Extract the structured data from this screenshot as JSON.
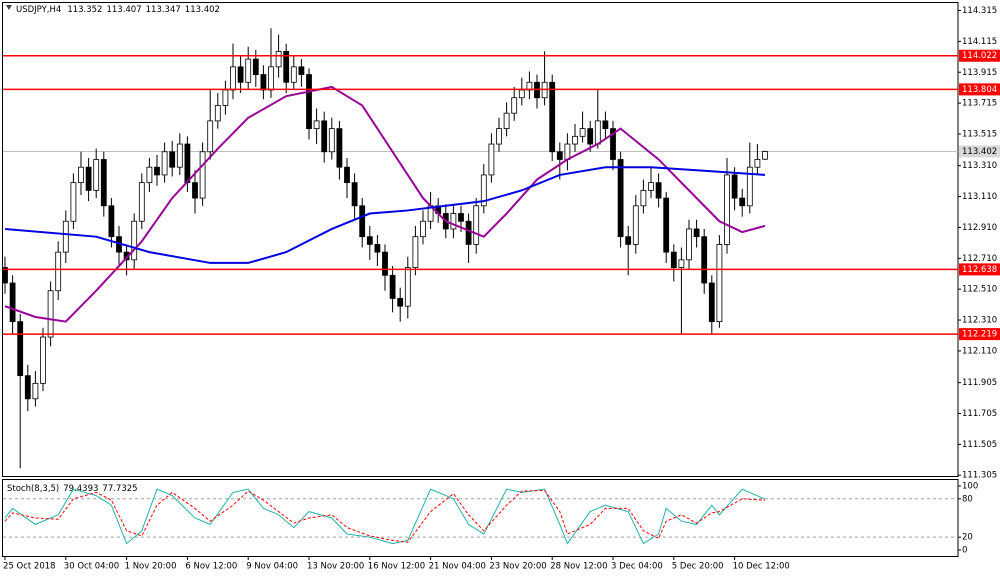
{
  "chart_data": [
    {
      "type": "candlestick",
      "symbol": "USDJPY,H4",
      "categories": [
        "25 Oct 2018",
        null,
        null,
        null,
        null,
        null,
        null,
        null,
        "30 Oct 04:00",
        null,
        null,
        null,
        null,
        null,
        null,
        null,
        "1 Nov 20:00",
        null,
        null,
        null,
        null,
        null,
        null,
        null,
        "6 Nov 12:00",
        null,
        null,
        null,
        null,
        null,
        null,
        null,
        "9 Nov 04:00",
        null,
        null,
        null,
        null,
        null,
        null,
        null,
        "13 Nov 20:00",
        null,
        null,
        null,
        null,
        null,
        null,
        null,
        "16 Nov 12:00",
        null,
        null,
        null,
        null,
        null,
        null,
        null,
        "21 Nov 04:00",
        null,
        null,
        null,
        null,
        null,
        null,
        null,
        "23 Nov 20:00",
        null,
        null,
        null,
        null,
        null,
        null,
        null,
        "28 Nov 12:00",
        null,
        null,
        null,
        null,
        null,
        null,
        null,
        "3 Dec 04:00",
        null,
        null,
        null,
        null,
        null,
        null,
        null,
        "5 Dec 20:00",
        null,
        null,
        null,
        null,
        null,
        null,
        null,
        "10 Dec 12:00",
        null,
        null,
        null,
        null
      ],
      "open": [
        112.65,
        112.55,
        112.3,
        111.95,
        111.8,
        111.9,
        112.2,
        112.5,
        112.75,
        112.95,
        113.2,
        113.3,
        113.15,
        113.35,
        113.05,
        112.85,
        112.75,
        112.7,
        112.95,
        113.2,
        113.3,
        113.25,
        113.4,
        113.3,
        113.45,
        113.2,
        113.1,
        113.4,
        113.6,
        113.7,
        113.8,
        113.95,
        113.85,
        114.0,
        113.9,
        113.8,
        113.95,
        114.05,
        113.85,
        113.95,
        113.9,
        113.55,
        113.6,
        113.4,
        113.55,
        113.3,
        113.2,
        113.05,
        112.85,
        112.8,
        112.75,
        112.6,
        112.45,
        112.4,
        112.65,
        112.85,
        112.95,
        113.05,
        113.0,
        112.9,
        113.0,
        112.95,
        112.8,
        113.05,
        113.25,
        113.45,
        113.55,
        113.65,
        113.75,
        113.8,
        113.85,
        113.75,
        113.85,
        113.4,
        113.35,
        113.45,
        113.5,
        113.55,
        113.45,
        113.6,
        113.55,
        113.35,
        112.85,
        112.8,
        113.05,
        113.15,
        113.2,
        113.1,
        112.75,
        112.65,
        112.7,
        112.9,
        112.85,
        112.55,
        112.3,
        112.8,
        113.25,
        113.1,
        113.05,
        113.3,
        113.352
      ],
      "high": [
        112.72,
        112.6,
        112.35,
        112.02,
        111.98,
        112.26,
        112.56,
        112.82,
        113.02,
        113.26,
        113.4,
        113.36,
        113.42,
        113.4,
        113.1,
        112.92,
        112.8,
        113.0,
        113.26,
        113.36,
        113.38,
        113.46,
        113.47,
        113.52,
        113.5,
        113.28,
        113.46,
        113.8,
        113.78,
        113.86,
        114.1,
        114.02,
        114.08,
        114.06,
        113.96,
        114.2,
        114.16,
        114.1,
        114.02,
        114.0,
        113.94,
        113.68,
        113.66,
        113.62,
        113.6,
        113.36,
        113.26,
        113.1,
        112.92,
        112.86,
        112.8,
        112.66,
        112.52,
        112.72,
        112.92,
        113.02,
        113.14,
        113.1,
        113.06,
        113.06,
        113.05,
        113.0,
        113.1,
        113.32,
        113.52,
        113.62,
        113.72,
        113.82,
        113.88,
        113.92,
        113.9,
        114.05,
        113.9,
        113.46,
        113.52,
        113.58,
        113.66,
        113.6,
        113.8,
        113.66,
        113.6,
        113.4,
        112.92,
        113.12,
        113.22,
        113.3,
        113.26,
        113.14,
        112.8,
        112.78,
        112.96,
        112.96,
        112.9,
        112.6,
        112.86,
        113.36,
        113.3,
        113.16,
        113.46,
        113.45,
        113.407
      ],
      "low": [
        112.48,
        112.22,
        111.35,
        111.72,
        111.75,
        111.85,
        112.14,
        112.44,
        112.68,
        112.9,
        113.12,
        113.08,
        113.1,
        112.98,
        112.78,
        112.66,
        112.6,
        112.64,
        112.9,
        113.14,
        113.18,
        113.2,
        113.24,
        113.25,
        113.14,
        113.0,
        113.05,
        113.35,
        113.55,
        113.64,
        113.74,
        113.78,
        113.8,
        113.82,
        113.74,
        113.75,
        113.88,
        113.78,
        113.8,
        113.82,
        113.48,
        113.45,
        113.33,
        113.35,
        113.22,
        113.1,
        112.96,
        112.78,
        112.7,
        112.66,
        112.5,
        112.36,
        112.3,
        112.32,
        112.6,
        112.8,
        112.9,
        112.94,
        112.84,
        112.84,
        112.88,
        112.68,
        112.74,
        113.0,
        113.2,
        113.4,
        113.5,
        113.6,
        113.7,
        113.74,
        113.68,
        113.7,
        113.34,
        113.22,
        113.28,
        113.4,
        113.46,
        113.4,
        113.42,
        113.48,
        113.28,
        112.78,
        112.6,
        112.74,
        113.0,
        113.1,
        113.04,
        112.68,
        112.56,
        112.22,
        112.64,
        112.78,
        112.48,
        112.22,
        112.26,
        112.74,
        113.02,
        112.98,
        113.0,
        113.25,
        113.347
      ],
      "close": [
        112.55,
        112.3,
        111.95,
        111.8,
        111.9,
        112.2,
        112.5,
        112.75,
        112.95,
        113.2,
        113.3,
        113.15,
        113.35,
        113.05,
        112.85,
        112.75,
        112.7,
        112.95,
        113.2,
        113.3,
        113.25,
        113.4,
        113.3,
        113.45,
        113.2,
        113.1,
        113.4,
        113.6,
        113.7,
        113.8,
        113.95,
        113.85,
        114.0,
        113.9,
        113.8,
        113.95,
        114.05,
        113.85,
        113.95,
        113.9,
        113.55,
        113.6,
        113.4,
        113.55,
        113.3,
        113.2,
        113.05,
        112.85,
        112.8,
        112.75,
        112.6,
        112.45,
        112.4,
        112.65,
        112.85,
        112.95,
        113.05,
        113.0,
        112.9,
        113.0,
        112.95,
        112.8,
        113.05,
        113.25,
        113.45,
        113.55,
        113.65,
        113.75,
        113.8,
        113.85,
        113.75,
        113.85,
        113.4,
        113.35,
        113.45,
        113.5,
        113.55,
        113.45,
        113.6,
        113.55,
        113.35,
        112.85,
        112.8,
        113.05,
        113.15,
        113.2,
        113.1,
        112.75,
        112.65,
        112.7,
        112.9,
        112.85,
        112.55,
        112.3,
        112.8,
        113.25,
        113.1,
        113.05,
        113.3,
        113.35,
        113.402
      ],
      "ylim": [
        111.3,
        114.37
      ],
      "yticks": [
        114.315,
        114.115,
        113.915,
        113.715,
        113.515,
        {
          "value": 113.31,
          "label": "113.310"
        },
        {
          "value": 113.11,
          "label": "113.110"
        },
        {
          "value": 112.91,
          "label": "112.910"
        },
        {
          "value": 112.71,
          "label": "112.710"
        },
        {
          "value": 112.51,
          "label": "112.510"
        },
        {
          "value": 112.31,
          "label": "112.310"
        },
        {
          "value": 112.11,
          "label": "112.110"
        },
        111.905,
        111.705,
        111.505,
        111.305
      ],
      "lines": [
        {
          "color": "#990099",
          "x": [
            0,
            4,
            8,
            12,
            18,
            22,
            28,
            32,
            37,
            43,
            47,
            51,
            55,
            58,
            63,
            66,
            70,
            74,
            78,
            81,
            86,
            90,
            94,
            97,
            100
          ],
          "values": [
            112.4,
            112.33,
            112.3,
            112.5,
            112.82,
            113.1,
            113.42,
            113.62,
            113.76,
            113.82,
            113.7,
            113.4,
            113.1,
            112.95,
            112.85,
            113.0,
            113.22,
            113.35,
            113.45,
            113.55,
            113.35,
            113.15,
            112.95,
            112.88,
            112.92
          ]
        },
        {
          "color": "#0000e0",
          "x": [
            0,
            12,
            19,
            27,
            32,
            37,
            43,
            48,
            53,
            58,
            63,
            68,
            73,
            79,
            85,
            91,
            100
          ],
          "values": [
            112.9,
            112.85,
            112.75,
            112.68,
            112.68,
            112.75,
            112.9,
            113.0,
            113.02,
            113.05,
            113.08,
            113.15,
            113.25,
            113.3,
            113.3,
            113.28,
            113.25
          ]
        }
      ],
      "levels": [
        {
          "value": 114.022,
          "color": "#ff0000"
        },
        {
          "value": 113.804,
          "color": "#ff0000"
        },
        {
          "value": 112.638,
          "color": "#ff0000"
        },
        {
          "value": 112.219,
          "color": "#ff0000"
        }
      ],
      "price_line_color": "#c0c0c0"
    },
    {
      "type": "line",
      "name": "Stoch(8,3,5)",
      "ylim": [
        -9.4,
        107.8
      ],
      "yticks": [
        100,
        80,
        20,
        0
      ],
      "levels": [
        80,
        20
      ],
      "series": [
        {
          "color": "#20b2aa",
          "x": [
            0,
            1,
            4,
            7,
            9,
            12,
            14,
            16,
            18,
            20,
            22,
            25,
            27,
            30,
            32,
            34,
            36,
            38,
            40,
            43,
            45,
            48,
            51,
            53,
            56,
            59,
            61,
            63,
            66,
            68,
            71,
            73,
            74,
            77,
            79,
            82,
            84,
            86,
            87,
            89,
            91,
            93,
            94,
            97,
            100
          ],
          "values": [
            50,
            65,
            40,
            55,
            95,
            85,
            70,
            10,
            30,
            95,
            85,
            50,
            40,
            90,
            95,
            65,
            55,
            35,
            60,
            50,
            25,
            20,
            10,
            15,
            95,
            80,
            40,
            25,
            95,
            90,
            95,
            40,
            10,
            60,
            70,
            60,
            10,
            25,
            65,
            45,
            40,
            70,
            55,
            95,
            79.4393
          ]
        },
        {
          "color": "#ff0000",
          "dashed": true,
          "x": [
            0,
            1,
            4,
            7,
            9,
            12,
            14,
            16,
            18,
            20,
            22,
            25,
            27,
            30,
            32,
            34,
            36,
            38,
            40,
            43,
            45,
            48,
            51,
            53,
            56,
            59,
            61,
            63,
            66,
            68,
            71,
            73,
            74,
            77,
            79,
            82,
            84,
            86,
            87,
            89,
            91,
            93,
            94,
            97,
            100
          ],
          "values": [
            45,
            58,
            50,
            48,
            80,
            90,
            78,
            30,
            22,
            70,
            90,
            65,
            45,
            70,
            92,
            78,
            60,
            42,
            50,
            55,
            35,
            22,
            15,
            12,
            60,
            88,
            55,
            30,
            70,
            92,
            93,
            60,
            25,
            40,
            65,
            65,
            30,
            18,
            45,
            55,
            42,
            58,
            60,
            80,
            77.7325
          ]
        }
      ]
    }
  ]
}
